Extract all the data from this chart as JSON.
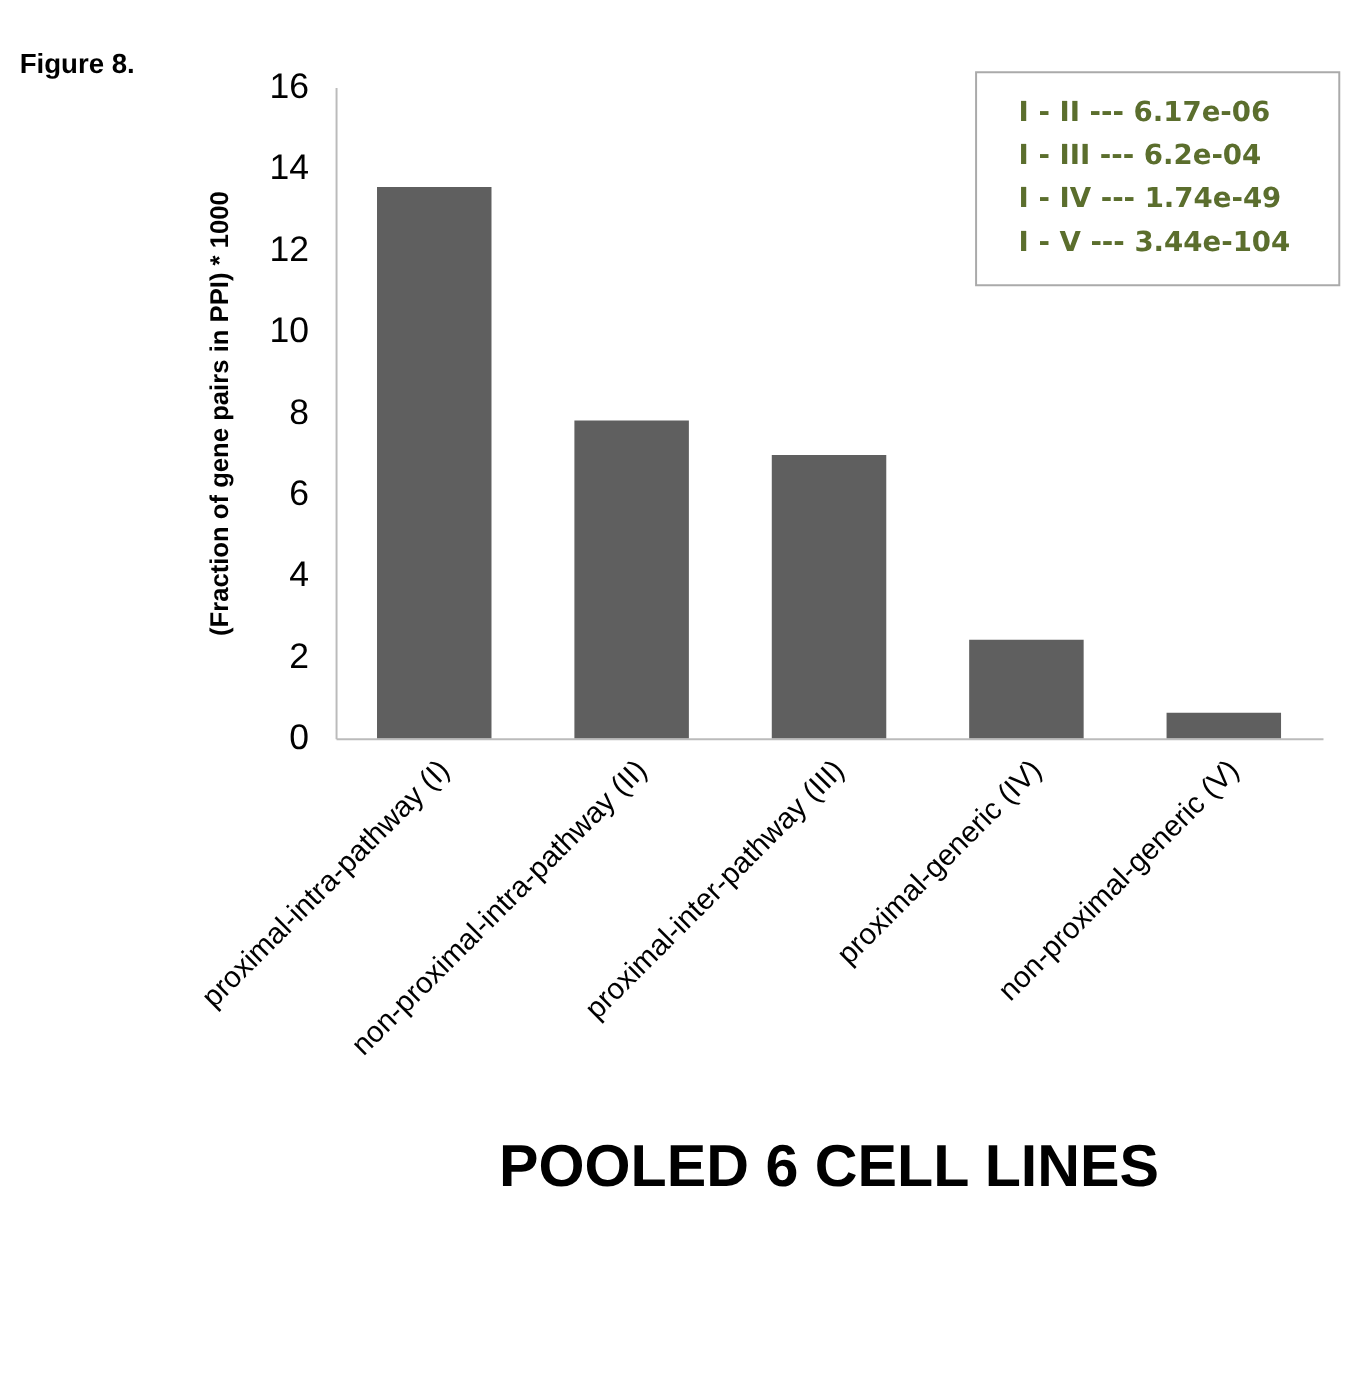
{
  "chart_data": {
    "type": "bar",
    "title": "POOLED 6 CELL LINES",
    "ylabel": "(Fraction of gene pairs in PPI) * 1000",
    "categories": [
      "proximal-intra-pathway (I)",
      "non-proximal-intra-pathway (II)",
      "proximal-inter-pathway (III)",
      "proximal-generic (IV)",
      "non-proximal-generic (V)"
    ],
    "values": [
      13.54,
      7.81,
      6.96,
      2.42,
      0.63
    ],
    "color": "#5f5f5f",
    "ylim": [
      0,
      16
    ],
    "yticks": [
      0,
      2,
      4,
      6,
      8,
      10,
      12,
      14,
      16
    ],
    "grid": false,
    "annotations": [
      "Figure 8.",
      "I - II    ---  6.17e-06",
      "I - III  ---  6.2e-04",
      "I - IV ---  1.74e-49",
      "I - V  ---  3.44e-104"
    ]
  }
}
